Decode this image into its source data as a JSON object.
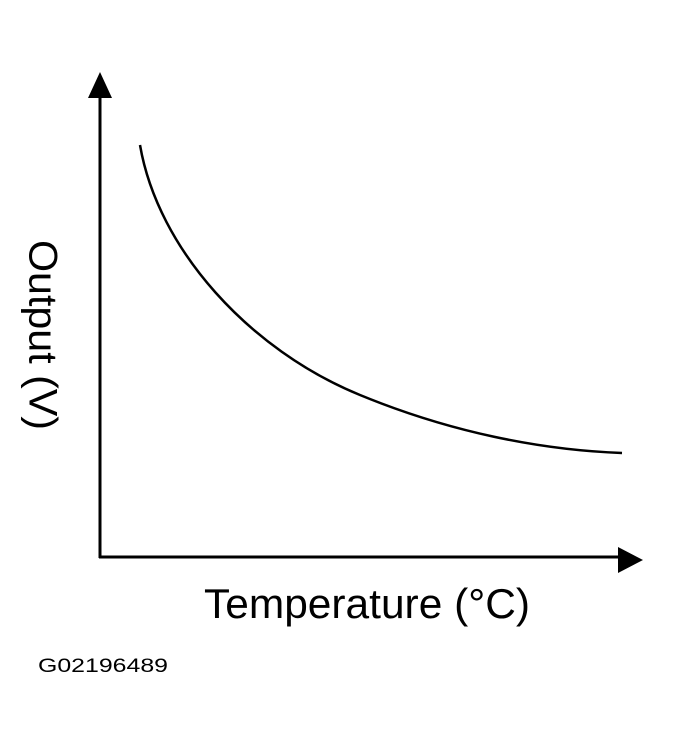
{
  "diagram": {
    "y_axis_label": "Output (V)",
    "x_axis_label": "Temperature (°C)",
    "figure_id": "G02196489"
  }
}
